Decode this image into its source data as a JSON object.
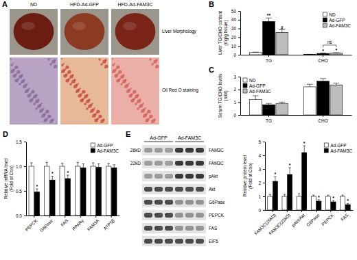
{
  "chart_data": [
    {
      "type": "bar",
      "title": "B",
      "y_label": [
        "Liver TG/CHO content",
        "(mg/g tissue)"
      ],
      "categories": [
        "TG",
        "CHO"
      ],
      "series": [
        {
          "name": "ND",
          "color": "#ffffff",
          "values": [
            2.5,
            0.4
          ],
          "errors": [
            0.5,
            0.1
          ]
        },
        {
          "name": "Ad-GFP",
          "color": "#000000",
          "values": [
            38,
            1.5
          ],
          "errors": [
            4,
            0.3
          ]
        },
        {
          "name": "Ad-FAM3C",
          "color": "#bdbdbd",
          "values": [
            25.5,
            2
          ],
          "errors": [
            3,
            0.4
          ]
        }
      ],
      "ylim": [
        0,
        50
      ],
      "yticks": [
        0,
        10,
        20,
        30,
        40,
        50
      ],
      "legend": "upper right",
      "annotations": [
        {
          "text": "**",
          "series": "Ad-GFP",
          "category": "TG"
        },
        {
          "text": "#",
          "series": "Ad-FAM3C",
          "category": "TG"
        },
        {
          "text": "*",
          "series": "Ad-GFP",
          "category": "CHO"
        },
        {
          "text": "*",
          "series": "Ad-FAM3C",
          "category": "CHO"
        },
        {
          "text": "ns",
          "series": [
            "Ad-GFP",
            "Ad-FAM3C"
          ],
          "category": "CHO"
        }
      ]
    },
    {
      "type": "bar",
      "title": "C",
      "y_label": [
        "Serum TG/CHO levels",
        "(mM)"
      ],
      "categories": [
        "TG",
        "CHO"
      ],
      "series": [
        {
          "name": "ND",
          "color": "#ffffff",
          "values": [
            1.2,
            2.2
          ],
          "errors": [
            0.3,
            0.2
          ]
        },
        {
          "name": "Ad-GFP",
          "color": "#000000",
          "values": [
            0.8,
            2.65
          ],
          "errors": [
            0.1,
            0.2
          ]
        },
        {
          "name": "Ad-FAM3C",
          "color": "#bdbdbd",
          "values": [
            0.9,
            2.35
          ],
          "errors": [
            0.1,
            0.15
          ]
        }
      ],
      "ylim": [
        0,
        3
      ],
      "yticks": [
        0,
        1,
        2,
        3
      ],
      "legend": "upper left"
    },
    {
      "type": "bar",
      "title": "D",
      "y_label": [
        "Relative mRNA level",
        "(Fold of Con)"
      ],
      "categories": [
        "PEPCK",
        "G6Pase",
        "FAS",
        "PPARγ",
        "FAM3A",
        "ATP5β"
      ],
      "series": [
        {
          "name": "Ad-GFP",
          "color": "#ffffff",
          "values": [
            1,
            1,
            1,
            1,
            1,
            1
          ],
          "errors": [
            0.07,
            0.08,
            0.06,
            0.08,
            0.07,
            0.06
          ]
        },
        {
          "name": "Ad-FAM3C",
          "color": "#000000",
          "values": [
            0.48,
            0.72,
            0.75,
            0.97,
            0.98,
            0.97
          ],
          "errors": [
            0.06,
            0.08,
            0.07,
            0.08,
            0.07,
            0.06
          ]
        }
      ],
      "ylim": [
        0,
        1.5
      ],
      "yticks": [
        {
          "value": 0,
          "label": "0.0"
        },
        0.5,
        {
          "value": 1,
          "label": "1.0"
        },
        1.5
      ],
      "legend": "upper right",
      "annotations": [
        {
          "text": "*",
          "series": "Ad-FAM3C",
          "category": "PEPCK"
        },
        {
          "text": "*",
          "series": "Ad-FAM3C",
          "category": "G6Pase"
        },
        {
          "text": "*",
          "series": "Ad-FAM3C",
          "category": "FAS"
        }
      ]
    },
    {
      "type": "bar",
      "y_label": [
        "Relative protein level",
        "(Fold of Con)"
      ],
      "categories": [
        "FAM3C(26kD)",
        "FAM3C(22kD)",
        "pAkt/Akt",
        "G6Pase",
        "PEPCK",
        "FAS"
      ],
      "series": [
        {
          "name": "Ad-GFP",
          "color": "#ffffff",
          "values": [
            1,
            1,
            1,
            1,
            1,
            1
          ],
          "errors": [
            0.15,
            0.15,
            0.2,
            0.1,
            0.1,
            0.1
          ]
        },
        {
          "name": "Ad-FAM3C",
          "color": "#000000",
          "values": [
            2.1,
            2.6,
            4.2,
            0.65,
            0.6,
            0.4
          ],
          "errors": [
            0.35,
            0.5,
            0.5,
            0.1,
            0.1,
            0.08
          ]
        }
      ],
      "ylim": [
        0,
        5
      ],
      "yticks": [
        0,
        1,
        2,
        3,
        4,
        5
      ],
      "legend": "upper right",
      "annotations": [
        {
          "text": "*",
          "series": "Ad-FAM3C",
          "category": "FAM3C(26kD)"
        },
        {
          "text": "*",
          "series": "Ad-FAM3C",
          "category": "FAM3C(22kD)"
        },
        {
          "text": "*",
          "series": "Ad-FAM3C",
          "category": "pAkt/Akt"
        },
        {
          "text": "*",
          "series": "Ad-FAM3C",
          "category": "G6Pase"
        },
        {
          "text": "*",
          "series": "Ad-FAM3C",
          "category": "PEPCK"
        },
        {
          "text": "*",
          "series": "Ad-FAM3C",
          "category": "FAS"
        }
      ]
    }
  ],
  "photos": {
    "title": "A",
    "columns": [
      "ND",
      "HFD-Ad-GFP",
      "HFD-Ad-FAM3C"
    ],
    "rows": [
      "Liver Morphology",
      "Oil Red O staining"
    ]
  },
  "blot": {
    "title": "E",
    "groups": [
      "Ad-GFP",
      "Ad-FAM3C"
    ],
    "markers": [
      "26kD",
      "22kD"
    ],
    "rows": [
      "FAM3C",
      "FAM3C",
      "pAkt",
      "Akt",
      "G6Pase",
      "PEPCK",
      "FAS",
      "EIF5"
    ]
  }
}
